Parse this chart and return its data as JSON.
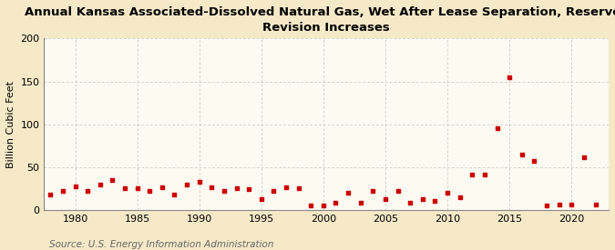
{
  "title": "Annual Kansas Associated-Dissolved Natural Gas, Wet After Lease Separation, Reserves\nRevision Increases",
  "ylabel": "Billion Cubic Feet",
  "source": "Source: U.S. Energy Information Administration",
  "background_color": "#f5e9c8",
  "plot_background_color": "#fdfaf2",
  "marker_color": "#cc0000",
  "years": [
    1978,
    1979,
    1980,
    1981,
    1982,
    1983,
    1984,
    1985,
    1986,
    1987,
    1988,
    1989,
    1990,
    1991,
    1992,
    1993,
    1994,
    1995,
    1996,
    1997,
    1998,
    1999,
    2000,
    2001,
    2002,
    2003,
    2004,
    2005,
    2006,
    2007,
    2008,
    2009,
    2010,
    2011,
    2012,
    2013,
    2014,
    2015,
    2016,
    2017,
    2018,
    2019,
    2020,
    2021,
    2022
  ],
  "values": [
    18,
    22,
    28,
    22,
    30,
    35,
    26,
    26,
    22,
    27,
    18,
    30,
    33,
    27,
    22,
    26,
    25,
    13,
    22,
    27,
    26,
    5,
    6,
    9,
    20,
    9,
    22,
    13,
    22,
    9,
    13,
    11,
    20,
    15,
    42,
    42,
    95,
    155,
    65,
    57,
    5,
    7,
    7,
    62,
    7
  ],
  "xlim": [
    1977.5,
    2023
  ],
  "ylim": [
    0,
    200
  ],
  "yticks": [
    0,
    50,
    100,
    150,
    200
  ],
  "xticks": [
    1980,
    1985,
    1990,
    1995,
    2000,
    2005,
    2010,
    2015,
    2020
  ],
  "grid_color": "#aaaaaa",
  "title_fontsize": 9.5,
  "label_fontsize": 8,
  "tick_fontsize": 8,
  "source_fontsize": 7.5
}
